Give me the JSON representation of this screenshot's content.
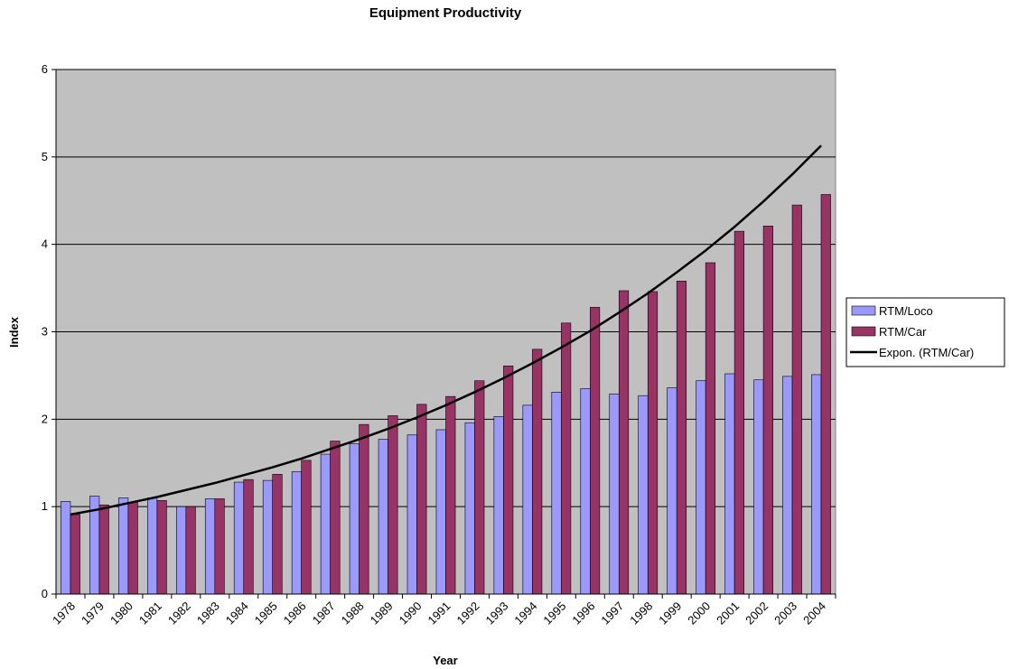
{
  "chart_data": {
    "type": "bar",
    "title": "Equipment Productivity",
    "x_label": "Year",
    "y_label": "Index",
    "categories": [
      "1978",
      "1979",
      "1980",
      "1981",
      "1982",
      "1983",
      "1984",
      "1985",
      "1986",
      "1987",
      "1988",
      "1989",
      "1990",
      "1991",
      "1992",
      "1993",
      "1994",
      "1995",
      "1996",
      "1997",
      "1998",
      "1999",
      "2000",
      "2001",
      "2002",
      "2003",
      "2004"
    ],
    "series": [
      {
        "name": "RTM/Loco",
        "color": "#9999ff",
        "type": "bar",
        "values": [
          1.06,
          1.12,
          1.1,
          1.1,
          1.0,
          1.09,
          1.28,
          1.3,
          1.4,
          1.6,
          1.72,
          1.77,
          1.82,
          1.88,
          1.96,
          2.03,
          2.16,
          2.31,
          2.35,
          2.29,
          2.27,
          2.36,
          2.44,
          2.52,
          2.45,
          2.49,
          2.51
        ]
      },
      {
        "name": "RTM/Car",
        "color": "#993366",
        "type": "bar",
        "values": [
          0.91,
          1.02,
          1.05,
          1.07,
          1.0,
          1.09,
          1.31,
          1.37,
          1.53,
          1.75,
          1.94,
          2.04,
          2.17,
          2.26,
          2.44,
          2.61,
          2.8,
          3.1,
          3.28,
          3.47,
          3.46,
          3.58,
          3.79,
          4.15,
          4.21,
          4.45,
          4.57
        ]
      },
      {
        "name": "Expon. (RTM/Car)",
        "color": "#000000",
        "type": "line",
        "values": [
          0.91,
          0.97,
          1.04,
          1.11,
          1.19,
          1.27,
          1.36,
          1.45,
          1.55,
          1.66,
          1.77,
          1.89,
          2.02,
          2.16,
          2.31,
          2.47,
          2.64,
          2.82,
          3.01,
          3.22,
          3.44,
          3.68,
          3.93,
          4.2,
          4.49,
          4.8,
          5.13
        ]
      }
    ],
    "ylim": [
      0,
      6
    ],
    "yticks": [
      0,
      1,
      2,
      3,
      4,
      5,
      6
    ],
    "grid": true,
    "legend": "right",
    "plot_background": "#c0c0c0"
  }
}
